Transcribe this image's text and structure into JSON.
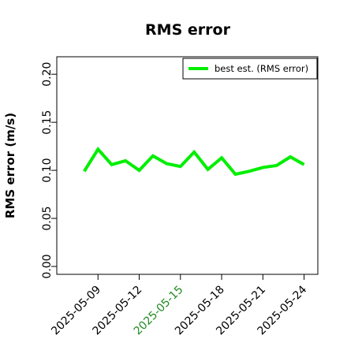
{
  "chart_data": {
    "type": "line",
    "title": "RMS error",
    "xlabel": "",
    "ylabel": "RMS error (m/s)",
    "ylim": [
      0,
      0.21
    ],
    "yticks": [
      "0.00",
      "0.05",
      "0.10",
      "0.15",
      "0.20"
    ],
    "ytick_values": [
      0,
      0.05,
      0.1,
      0.15,
      0.2
    ],
    "x": [
      "2025-05-08",
      "2025-05-09",
      "2025-05-10",
      "2025-05-11",
      "2025-05-12",
      "2025-05-13",
      "2025-05-14",
      "2025-05-15",
      "2025-05-16",
      "2025-05-17",
      "2025-05-18",
      "2025-05-19",
      "2025-05-20",
      "2025-05-21",
      "2025-05-22",
      "2025-05-23",
      "2025-05-24"
    ],
    "xlim": [
      "2025-05-06",
      "2025-05-25"
    ],
    "xticks": [
      {
        "label": "2025-05-09",
        "color": "#000000"
      },
      {
        "label": "2025-05-12",
        "color": "#000000"
      },
      {
        "label": "2025-05-15",
        "color": "#228B22"
      },
      {
        "label": "2025-05-18",
        "color": "#000000"
      },
      {
        "label": "2025-05-21",
        "color": "#000000"
      },
      {
        "label": "2025-05-24",
        "color": "#000000"
      }
    ],
    "grid": false,
    "legend_position": "top-right",
    "series": [
      {
        "name": "best est. (RMS error)",
        "color": "#00EE00",
        "values": [
          0.099,
          0.122,
          0.106,
          0.11,
          0.1,
          0.115,
          0.107,
          0.104,
          0.119,
          0.101,
          0.113,
          0.096,
          0.099,
          0.103,
          0.105,
          0.114,
          0.106
        ]
      }
    ]
  }
}
